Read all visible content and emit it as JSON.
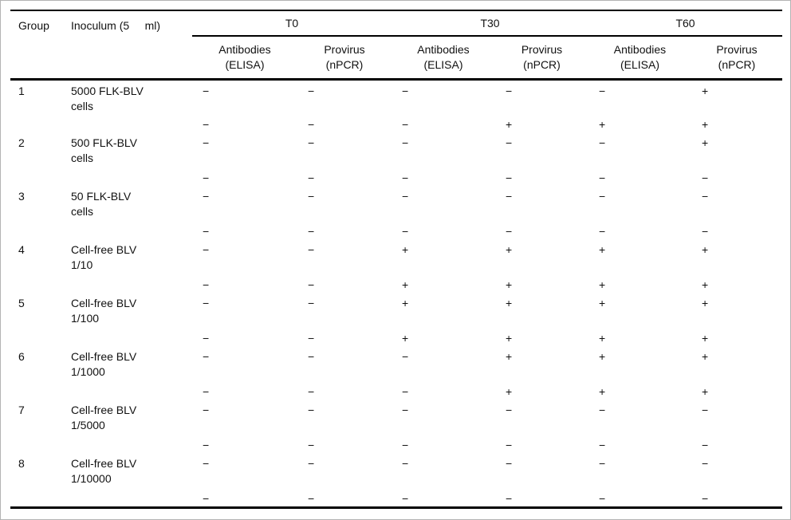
{
  "page": {
    "background": "#ffffff",
    "frame_border": "#b3b3b3",
    "text_color": "#111111",
    "rule_color": "#000000"
  },
  "table": {
    "header": {
      "group": "Group",
      "inoculum": "Inoculum (5     ml)",
      "periods": [
        {
          "label": "T0",
          "antibodies": "Antibodies\n(ELISA)",
          "provirus": "Provirus\n(nPCR)"
        },
        {
          "label": "T30",
          "antibodies": "Antibodies\n(ELISA)",
          "provirus": "Provirus\n(nPCR)"
        },
        {
          "label": "T60",
          "antibodies": "Antibodies\n(ELISA)",
          "provirus": "Provirus\n(nPCR)"
        }
      ]
    },
    "rows": [
      {
        "group": "1",
        "inoculum": "5000 FLK-BLV\ncells",
        "values": [
          "−",
          "−",
          "−",
          "−",
          "−",
          "+"
        ]
      },
      {
        "group": "",
        "inoculum": "",
        "values": [
          "−",
          "−",
          "−",
          "+",
          "+",
          "+"
        ]
      },
      {
        "group": "2",
        "inoculum": "500 FLK-BLV\ncells",
        "values": [
          "−",
          "−",
          "−",
          "−",
          "−",
          "+"
        ]
      },
      {
        "group": "",
        "inoculum": "",
        "values": [
          "−",
          "−",
          "−",
          "−",
          "−",
          "−"
        ]
      },
      {
        "group": "3",
        "inoculum": "50 FLK-BLV\ncells",
        "values": [
          "−",
          "−",
          "−",
          "−",
          "−",
          "−"
        ]
      },
      {
        "group": "",
        "inoculum": "",
        "values": [
          "−",
          "−",
          "−",
          "−",
          "−",
          "−"
        ]
      },
      {
        "group": "4",
        "inoculum": "Cell-free BLV\n1/10",
        "values": [
          "−",
          "−",
          "+",
          "+",
          "+",
          "+"
        ]
      },
      {
        "group": "",
        "inoculum": "",
        "values": [
          "−",
          "−",
          "+",
          "+",
          "+",
          "+"
        ]
      },
      {
        "group": "5",
        "inoculum": "Cell-free BLV\n1/100",
        "values": [
          "−",
          "−",
          "+",
          "+",
          "+",
          "+"
        ]
      },
      {
        "group": "",
        "inoculum": "",
        "values": [
          "−",
          "−",
          "+",
          "+",
          "+",
          "+"
        ]
      },
      {
        "group": "6",
        "inoculum": "Cell-free BLV\n1/1000",
        "values": [
          "−",
          "−",
          "−",
          "+",
          "+",
          "+"
        ]
      },
      {
        "group": "",
        "inoculum": "",
        "values": [
          "−",
          "−",
          "−",
          "+",
          "+",
          "+"
        ]
      },
      {
        "group": "7",
        "inoculum": "Cell-free BLV\n1/5000",
        "values": [
          "−",
          "−",
          "−",
          "−",
          "−",
          "−"
        ]
      },
      {
        "group": "",
        "inoculum": "",
        "values": [
          "−",
          "−",
          "−",
          "−",
          "−",
          "−"
        ]
      },
      {
        "group": "8",
        "inoculum": "Cell-free BLV\n1/10000",
        "values": [
          "−",
          "−",
          "−",
          "−",
          "−",
          "−"
        ]
      },
      {
        "group": "",
        "inoculum": "",
        "values": [
          "−",
          "−",
          "−",
          "−",
          "−",
          "−"
        ]
      }
    ]
  }
}
